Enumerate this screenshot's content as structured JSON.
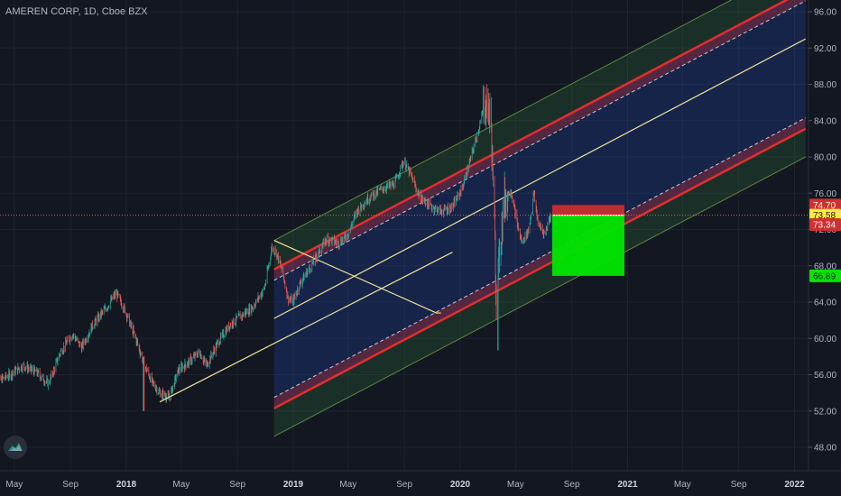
{
  "header": {
    "title": "AMEREN CORP, 1D, Cboe BZX"
  },
  "colors": {
    "background": "#131722",
    "candle_up": "#26a69a",
    "candle_down": "#ef5350",
    "channel_red": "#e52d2d",
    "channel_yellow": "#f0e39a",
    "fill_green": "#00e600",
    "fill_red": "#d32f2f",
    "badge_yellow": "#ffeb3b"
  },
  "chart_data": {
    "type": "candlestick",
    "symbol": "AMEREN CORP",
    "interval": "1D",
    "exchange": "Cboe BZX",
    "ylim": [
      46,
      97
    ],
    "y_ticks": [
      "96.00",
      "92.00",
      "88.00",
      "84.00",
      "80.00",
      "76.00",
      "72.00",
      "68.00",
      "64.00",
      "60.00",
      "56.00",
      "52.00",
      "48.00"
    ],
    "x_ticks": [
      {
        "label": "May",
        "date": "2017-05-01",
        "bold": false
      },
      {
        "label": "Sep",
        "date": "2017-09-01",
        "bold": false
      },
      {
        "label": "2018",
        "date": "2018-01-01",
        "bold": true
      },
      {
        "label": "May",
        "date": "2018-05-01",
        "bold": false
      },
      {
        "label": "Sep",
        "date": "2018-09-01",
        "bold": false
      },
      {
        "label": "2019",
        "date": "2019-01-01",
        "bold": true
      },
      {
        "label": "May",
        "date": "2019-05-01",
        "bold": false
      },
      {
        "label": "Sep",
        "date": "2019-09-01",
        "bold": false
      },
      {
        "label": "2020",
        "date": "2020-01-01",
        "bold": true
      },
      {
        "label": "May",
        "date": "2020-05-01",
        "bold": false
      },
      {
        "label": "Sep",
        "date": "2020-09-01",
        "bold": false
      },
      {
        "label": "2021",
        "date": "2021-01-01",
        "bold": true
      },
      {
        "label": "May",
        "date": "2021-05-01",
        "bold": false
      },
      {
        "label": "Sep",
        "date": "2021-09-01",
        "bold": false
      },
      {
        "label": "2022",
        "date": "2022-01-01",
        "bold": true
      }
    ],
    "price_path": [
      [
        "2017-03-15",
        55.0
      ],
      [
        "2017-04-15",
        55.8
      ],
      [
        "2017-05-20",
        57.0
      ],
      [
        "2017-06-20",
        56.2
      ],
      [
        "2017-07-15",
        55.0
      ],
      [
        "2017-08-10",
        58.5
      ],
      [
        "2017-09-05",
        60.5
      ],
      [
        "2017-09-25",
        59.0
      ],
      [
        "2017-10-20",
        61.5
      ],
      [
        "2017-11-20",
        63.5
      ],
      [
        "2017-12-10",
        65.0
      ],
      [
        "2017-12-30",
        63.0
      ],
      [
        "2018-01-25",
        59.5
      ],
      [
        "2018-02-10",
        57.0
      ],
      [
        "2018-02-28",
        55.0
      ],
      [
        "2018-03-15",
        54.0
      ],
      [
        "2018-04-05",
        53.5
      ],
      [
        "2018-04-25",
        56.5
      ],
      [
        "2018-05-20",
        57.5
      ],
      [
        "2018-06-10",
        58.5
      ],
      [
        "2018-06-25",
        57.0
      ],
      [
        "2018-07-20",
        59.5
      ],
      [
        "2018-08-15",
        61.5
      ],
      [
        "2018-09-10",
        62.5
      ],
      [
        "2018-10-05",
        63.5
      ],
      [
        "2018-10-30",
        65.5
      ],
      [
        "2018-11-15",
        70.0
      ],
      [
        "2018-11-25",
        69.5
      ],
      [
        "2018-12-10",
        67.0
      ],
      [
        "2018-12-20",
        64.5
      ],
      [
        "2018-12-31",
        64.0
      ],
      [
        "2019-01-15",
        66.0
      ],
      [
        "2019-02-15",
        68.5
      ],
      [
        "2019-03-15",
        71.0
      ],
      [
        "2019-04-10",
        70.5
      ],
      [
        "2019-05-01",
        71.5
      ],
      [
        "2019-05-20",
        74.0
      ],
      [
        "2019-06-15",
        75.5
      ],
      [
        "2019-07-15",
        76.5
      ],
      [
        "2019-08-10",
        77.0
      ],
      [
        "2019-08-30",
        79.5
      ],
      [
        "2019-09-15",
        78.0
      ],
      [
        "2019-10-05",
        75.5
      ],
      [
        "2019-10-30",
        74.5
      ],
      [
        "2019-11-20",
        74.0
      ],
      [
        "2019-12-15",
        74.5
      ],
      [
        "2020-01-05",
        76.5
      ],
      [
        "2020-01-25",
        80.0
      ],
      [
        "2020-02-10",
        83.0
      ],
      [
        "2020-02-25",
        86.0
      ],
      [
        "2020-03-08",
        84.5
      ],
      [
        "2020-03-16",
        72.0
      ],
      [
        "2020-03-20",
        64.0
      ],
      [
        "2020-03-25",
        68.0
      ],
      [
        "2020-04-05",
        75.0
      ],
      [
        "2020-04-20",
        76.5
      ],
      [
        "2020-05-05",
        72.5
      ],
      [
        "2020-05-15",
        70.5
      ],
      [
        "2020-05-30",
        72.0
      ],
      [
        "2020-06-10",
        76.0
      ],
      [
        "2020-06-20",
        72.5
      ],
      [
        "2020-07-05",
        71.5
      ],
      [
        "2020-07-12",
        73.0
      ],
      [
        "2020-07-17",
        73.58
      ]
    ],
    "extremes": [
      {
        "date": "2018-02-08",
        "low": 52.0
      },
      {
        "date": "2020-02-21",
        "high": 87.9
      },
      {
        "date": "2020-03-23",
        "low": 58.7
      }
    ],
    "channel": {
      "start": "2018-11-20",
      "end": "2022-01-25",
      "start_value": 62.2,
      "end_value": 93.0,
      "lines": [
        {
          "offset": 8.6,
          "style": "green-edge"
        },
        {
          "offset": 5.4,
          "style": "red"
        },
        {
          "offset": 4.2,
          "style": "dashed"
        },
        {
          "offset": 0,
          "style": "yellow-median"
        },
        {
          "offset": -8.7,
          "style": "dashed"
        },
        {
          "offset": -9.9,
          "style": "red"
        },
        {
          "offset": -13.0,
          "style": "green-edge"
        }
      ],
      "handle": [
        [
          "2018-11-20",
          70.8
        ],
        [
          "2019-11-10",
          62.8
        ],
        [
          "2019-11-20",
          62.8
        ]
      ]
    },
    "support_line": [
      [
        "2018-03-15",
        53.0
      ],
      [
        "2019-12-15",
        69.5
      ]
    ],
    "position": {
      "start": "2020-07-20",
      "end": "2020-12-25",
      "stop": 74.7,
      "entry": 73.58,
      "target": 66.89
    },
    "price_badges": [
      {
        "value": 74.7,
        "label": "74.70",
        "bg": "#d32f2f",
        "fg": "#ffffff"
      },
      {
        "value": 73.58,
        "label": "73.58",
        "bg": "#ffeb3b",
        "fg": "#131722"
      },
      {
        "value": 72.55,
        "label": "73.34",
        "bg": "#d32f2f",
        "fg": "#ffffff"
      },
      {
        "value": 66.89,
        "label": "66.89",
        "bg": "#00e600",
        "fg": "#131722"
      }
    ]
  }
}
